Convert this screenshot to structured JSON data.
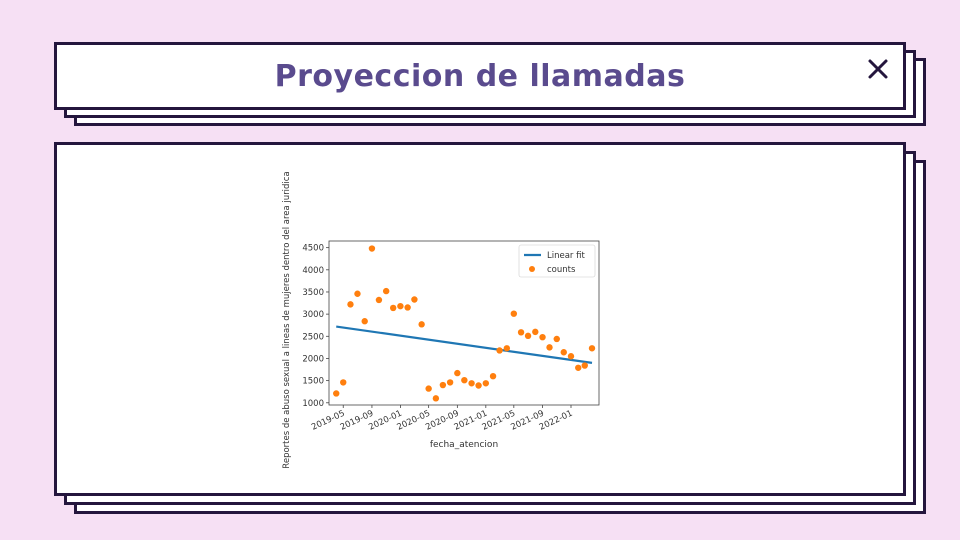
{
  "window": {
    "title": "Proyeccion de llamadas",
    "close_icon": "close-icon"
  },
  "colors": {
    "background": "#f6e0f4",
    "border": "#24163d",
    "title": "#5a4b8e",
    "fit_line": "#1f77b4",
    "points": "#ff7f0e"
  },
  "chart_data": {
    "type": "scatter",
    "title": "",
    "xlabel": "fecha_atencion",
    "ylabel": "Reportes de abuso sexual a lineas de mujeres dentro del area juridica",
    "ylim": [
      950,
      4650
    ],
    "xlim": [
      "2019-03-01",
      "2022-05-01"
    ],
    "yticks": [
      1000,
      1500,
      2000,
      2500,
      3000,
      3500,
      4000,
      4500
    ],
    "xticks": [
      "2019-05",
      "2019-09",
      "2020-01",
      "2020-05",
      "2020-09",
      "2021-01",
      "2021-05",
      "2021-09",
      "2022-01"
    ],
    "legend_position": "upper right",
    "grid": false,
    "series": [
      {
        "name": "Linear fit",
        "kind": "line",
        "x": [
          "2019-04-01",
          "2022-04-01"
        ],
        "y": [
          2720,
          1900
        ]
      },
      {
        "name": "counts",
        "kind": "scatter",
        "points": [
          [
            "2019-04-01",
            1210
          ],
          [
            "2019-05-01",
            1460
          ],
          [
            "2019-06-01",
            3220
          ],
          [
            "2019-07-01",
            3460
          ],
          [
            "2019-08-01",
            2840
          ],
          [
            "2019-09-01",
            4480
          ],
          [
            "2019-10-01",
            3320
          ],
          [
            "2019-11-01",
            3520
          ],
          [
            "2019-12-01",
            3140
          ],
          [
            "2020-01-01",
            3180
          ],
          [
            "2020-02-01",
            3150
          ],
          [
            "2020-03-01",
            3330
          ],
          [
            "2020-04-01",
            2770
          ],
          [
            "2020-05-01",
            1320
          ],
          [
            "2020-06-01",
            1100
          ],
          [
            "2020-07-01",
            1400
          ],
          [
            "2020-08-01",
            1460
          ],
          [
            "2020-09-01",
            1670
          ],
          [
            "2020-10-01",
            1510
          ],
          [
            "2020-11-01",
            1440
          ],
          [
            "2020-12-01",
            1390
          ],
          [
            "2021-01-01",
            1440
          ],
          [
            "2021-02-01",
            1600
          ],
          [
            "2021-03-01",
            2180
          ],
          [
            "2021-04-01",
            2230
          ],
          [
            "2021-05-01",
            3010
          ],
          [
            "2021-06-01",
            2590
          ],
          [
            "2021-07-01",
            2510
          ],
          [
            "2021-08-01",
            2600
          ],
          [
            "2021-09-01",
            2480
          ],
          [
            "2021-10-01",
            2250
          ],
          [
            "2021-11-01",
            2440
          ],
          [
            "2021-12-01",
            2140
          ],
          [
            "2022-01-01",
            2050
          ],
          [
            "2022-02-01",
            1790
          ],
          [
            "2022-03-01",
            1840
          ],
          [
            "2022-04-01",
            2230
          ]
        ]
      }
    ]
  }
}
